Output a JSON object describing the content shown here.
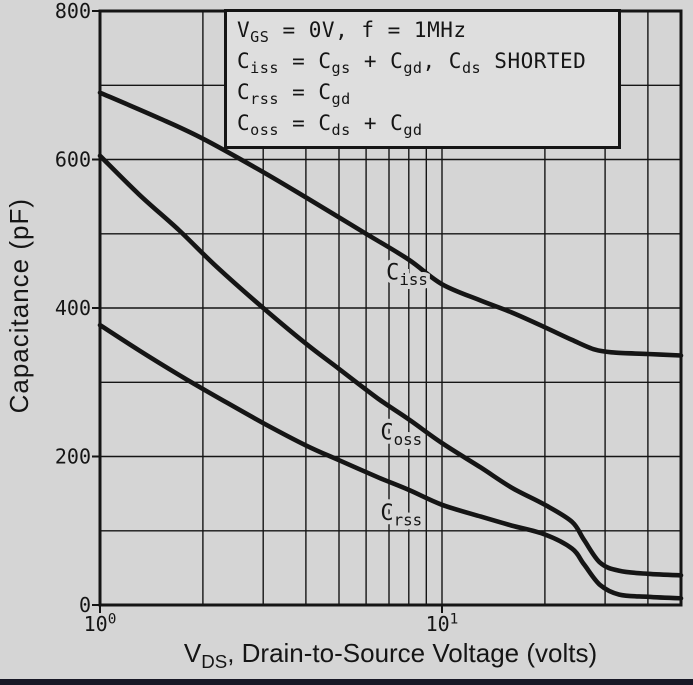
{
  "figure": {
    "background": "#d5d5d5",
    "ink": "#151515",
    "legend_background": "#dedede",
    "bottom_bar_color": "#181826"
  },
  "chart_data": {
    "type": "line",
    "title": "",
    "xlabel": "V_{DS}, Drain-to-Source Voltage (volts)",
    "ylabel": "Capacitance (pF)",
    "x_scale": "log",
    "xlim": [
      1,
      50
    ],
    "ylim": [
      0,
      800
    ],
    "x_ticks": [
      {
        "value": 1,
        "label": "10^{0}"
      },
      {
        "value": 10,
        "label": "10^{1}"
      }
    ],
    "y_ticks": [
      0,
      200,
      400,
      600,
      800
    ],
    "grid": {
      "on": true,
      "x_lines": [
        2,
        3,
        4,
        5,
        6,
        7,
        8,
        9,
        10,
        20,
        30,
        40
      ],
      "y_lines": [
        100,
        200,
        300,
        400,
        500,
        600,
        700
      ]
    },
    "legend": {
      "position": "top-right",
      "lines": [
        "V_{GS} = 0V, f = 1MHz",
        "C_{iss} = C_{gs} + C_{gd}, C_{ds} SHORTED",
        "C_{rss} = C_{gd}",
        "C_{oss} = C_{ds} + C_{gd}"
      ]
    },
    "series": [
      {
        "name": "C_{iss}",
        "label_at": {
          "x": 7.9,
          "y": 448
        },
        "points": [
          [
            1,
            690
          ],
          [
            1.5,
            655
          ],
          [
            2,
            628
          ],
          [
            3,
            583
          ],
          [
            4,
            549
          ],
          [
            5,
            522
          ],
          [
            6,
            500
          ],
          [
            8,
            465
          ],
          [
            10,
            432
          ],
          [
            13,
            410
          ],
          [
            16,
            394
          ],
          [
            20,
            374
          ],
          [
            24,
            357
          ],
          [
            28,
            344
          ],
          [
            32,
            340
          ],
          [
            40,
            338
          ],
          [
            50,
            336
          ]
        ]
      },
      {
        "name": "C_{oss}",
        "label_at": {
          "x": 7.6,
          "y": 232
        },
        "points": [
          [
            1,
            605
          ],
          [
            1.3,
            553
          ],
          [
            1.7,
            505
          ],
          [
            2.2,
            455
          ],
          [
            3,
            400
          ],
          [
            4,
            352
          ],
          [
            5,
            318
          ],
          [
            6.5,
            278
          ],
          [
            8,
            250
          ],
          [
            10,
            218
          ],
          [
            13,
            185
          ],
          [
            16,
            158
          ],
          [
            20,
            135
          ],
          [
            24,
            112
          ],
          [
            26,
            88
          ],
          [
            29,
            57
          ],
          [
            33,
            46
          ],
          [
            40,
            42
          ],
          [
            50,
            40
          ]
        ]
      },
      {
        "name": "C_{rss}",
        "label_at": {
          "x": 7.6,
          "y": 124
        },
        "points": [
          [
            1,
            377
          ],
          [
            1.3,
            343
          ],
          [
            1.7,
            310
          ],
          [
            2.2,
            280
          ],
          [
            3,
            245
          ],
          [
            4,
            215
          ],
          [
            5,
            195
          ],
          [
            6.5,
            172
          ],
          [
            8,
            155
          ],
          [
            10,
            135
          ],
          [
            13,
            119
          ],
          [
            16,
            107
          ],
          [
            20,
            95
          ],
          [
            24,
            76
          ],
          [
            26,
            55
          ],
          [
            29,
            27
          ],
          [
            33,
            14
          ],
          [
            40,
            11
          ],
          [
            50,
            9
          ]
        ]
      }
    ]
  }
}
